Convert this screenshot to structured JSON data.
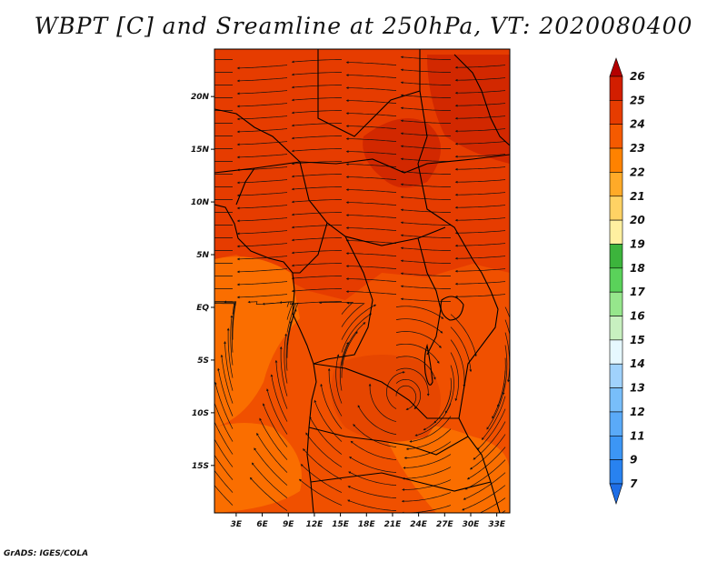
{
  "title": "WBPT [C] and Sreamline at 250hPa, VT: 2020080400",
  "credit": "GrADS: IGES/COLA",
  "map": {
    "lat_ticks": [
      "20N",
      "15N",
      "10N",
      "5N",
      "EQ",
      "5S",
      "10S",
      "15S"
    ],
    "lon_ticks": [
      "3E",
      "6E",
      "9E",
      "12E",
      "15E",
      "18E",
      "21E",
      "24E",
      "27E",
      "30E",
      "33E"
    ],
    "lat_range": [
      -19.5,
      24.5
    ],
    "lon_range": [
      0.5,
      34.5
    ]
  },
  "colorbar": {
    "labels": [
      "7",
      "9",
      "11",
      "12",
      "13",
      "14",
      "15",
      "16",
      "17",
      "18",
      "19",
      "20",
      "21",
      "22",
      "23",
      "24",
      "25",
      "26"
    ],
    "colors": [
      "#1e6ee6",
      "#2882f0",
      "#3c96f5",
      "#5aaaf8",
      "#78befa",
      "#a0d2fc",
      "#e6f8ff",
      "#c8f0c0",
      "#96e68c",
      "#5ad25a",
      "#3cb43c",
      "#fff0a0",
      "#ffd264",
      "#ffaa28",
      "#ff8200",
      "#f55a00",
      "#e63c00",
      "#d21e00",
      "#b40000"
    ]
  }
}
